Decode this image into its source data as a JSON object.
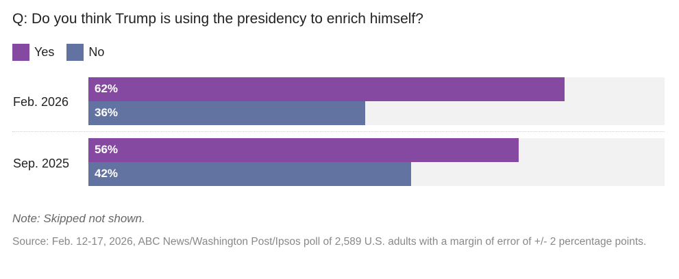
{
  "chart_data": {
    "type": "bar",
    "orientation": "horizontal",
    "title": "Q: Do you think Trump is using the presidency to enrich himself?",
    "categories": [
      "Feb. 2026",
      "Sep. 2025"
    ],
    "series": [
      {
        "name": "Yes",
        "color": "#8549a1",
        "values": [
          62,
          56
        ],
        "labels": [
          "62%",
          "56%"
        ]
      },
      {
        "name": "No",
        "color": "#6373a1",
        "values": [
          36,
          42
        ],
        "labels": [
          "36%",
          "42%"
        ]
      }
    ],
    "xlim": [
      0,
      75
    ],
    "xlabel": "",
    "ylabel": "",
    "grid": false,
    "legend": "top-left",
    "track_color": "#f2f2f2"
  },
  "note": "Note: Skipped not shown.",
  "source": "Source: Feb. 12-17, 2026, ABC News/Washington Post/Ipsos poll of 2,589 U.S. adults with a margin of error of +/- 2 percentage points."
}
